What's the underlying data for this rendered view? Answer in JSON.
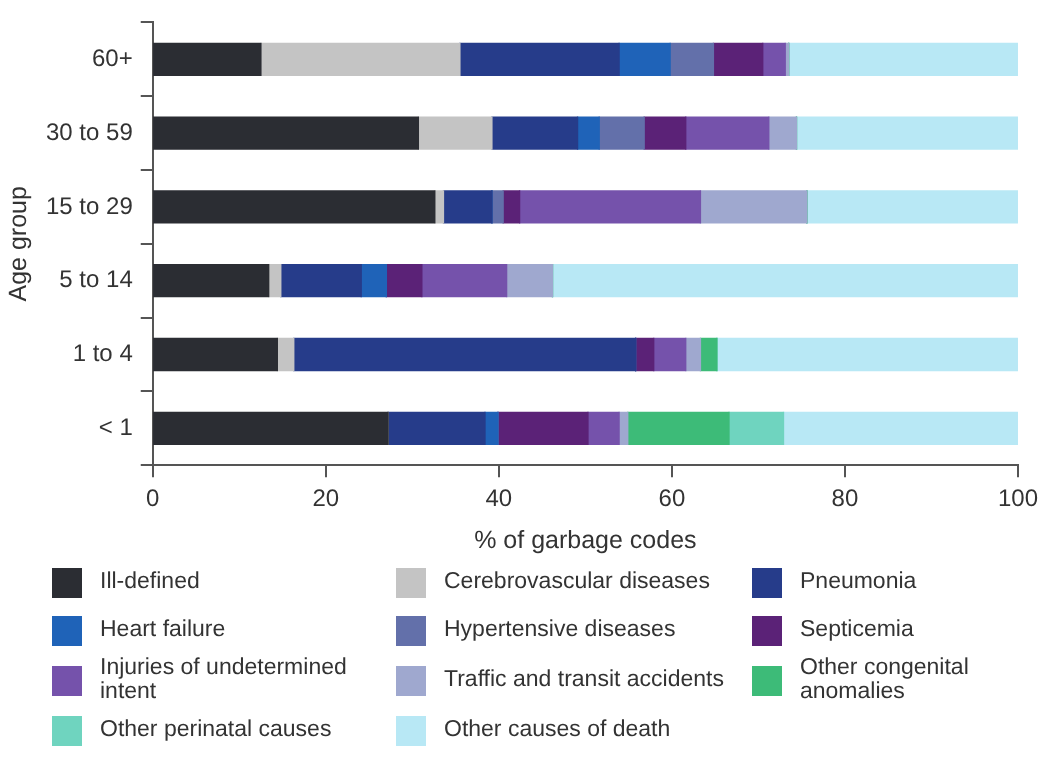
{
  "chart_data": {
    "type": "bar",
    "orientation": "horizontal",
    "stacked": true,
    "ylabel": "Age group",
    "xlabel": "% of garbage codes",
    "categories": [
      "60+",
      "30 to 59",
      "15 to 29",
      "5 to 14",
      "1 to 4",
      "< 1"
    ],
    "xlim": [
      0,
      100
    ],
    "xticks": [
      0,
      20,
      40,
      60,
      80,
      100
    ],
    "grid": false,
    "legend": "bottom",
    "series": [
      {
        "name": "Ill-defined",
        "color": "#2b2d33",
        "values": [
          12.5,
          30.7,
          32.6,
          13.4,
          14.4,
          27.2
        ]
      },
      {
        "name": "Cerebrovascular diseases",
        "color": "#c4c4c4",
        "values": [
          23,
          8.5,
          1,
          1.4,
          1.9,
          0
        ]
      },
      {
        "name": "Pneumonia",
        "color": "#263c8a",
        "values": [
          18.4,
          9.9,
          5.6,
          9.3,
          39.5,
          11.2
        ]
      },
      {
        "name": "Heart failure",
        "color": "#1f63b8",
        "values": [
          5.9,
          2.5,
          0,
          2.9,
          0,
          1.5
        ]
      },
      {
        "name": "Hypertensive diseases",
        "color": "#6370aa",
        "values": [
          5,
          5.2,
          1.3,
          0,
          0,
          0
        ]
      },
      {
        "name": "Septicemia",
        "color": "#5b2277",
        "values": [
          5.7,
          4.8,
          1.9,
          4.1,
          2.1,
          10.4
        ]
      },
      {
        "name": "Injuries of undetermined intent",
        "color": "#7552ab",
        "values": [
          2.6,
          9.6,
          20.9,
          9.8,
          3.7,
          3.6
        ]
      },
      {
        "name": "Traffic and transit accidents",
        "color": "#9fa8cf",
        "values": [
          0.4,
          3.2,
          12.3,
          5.3,
          1.7,
          1
        ]
      },
      {
        "name": "Other congenital anomalies",
        "color": "#3dbb78",
        "values": [
          0,
          0,
          0,
          0,
          1.9,
          11.7
        ]
      },
      {
        "name": "Other perinatal causes",
        "color": "#6fd4bf",
        "values": [
          0,
          0,
          0,
          0,
          0,
          6.3
        ]
      },
      {
        "name": "Other causes of death",
        "color": "#b8e8f5",
        "values": [
          26.5,
          25.6,
          24.4,
          53.8,
          34.8,
          27.1
        ]
      }
    ]
  }
}
